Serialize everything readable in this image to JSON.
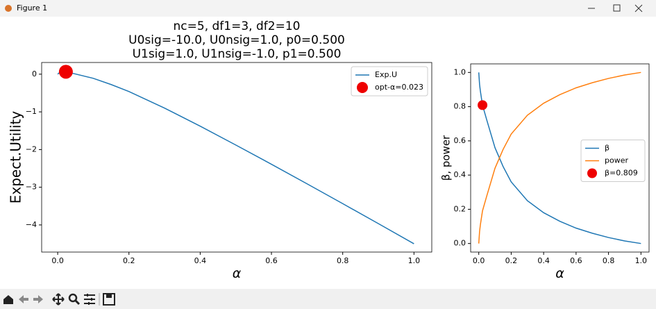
{
  "window": {
    "title": "Figure 1"
  },
  "chart_data": [
    {
      "type": "line",
      "title": [
        "nc=5, df1=3, df2=10",
        "U0sig=-10.0, U0nsig=1.0, p0=0.500",
        "U1sig=1.0, U1nsig=-1.0, p1=0.500"
      ],
      "x_label": "α",
      "y_label": "Expect.Utility",
      "x": [
        0,
        0.005,
        0.01,
        0.023,
        0.05,
        0.1,
        0.15,
        0.2,
        0.3,
        0.4,
        0.5,
        0.6,
        0.7,
        0.8,
        0.9,
        1.0
      ],
      "series": [
        {
          "name": "Exp.U",
          "kind": "line",
          "color": "#1f77b4",
          "values": [
            0,
            0.0425,
            0.055,
            0.0645,
            0.005,
            -0.11,
            -0.275,
            -0.46,
            -0.9,
            -1.38,
            -1.88,
            -2.39,
            -2.91,
            -3.435,
            -3.965,
            -4.5
          ]
        },
        {
          "name": "opt-α=0.023",
          "kind": "scatter",
          "color": "#ee0000",
          "x": [
            0.023
          ],
          "values": [
            0.0645
          ]
        }
      ],
      "xlim": [
        -0.045,
        1.05
      ],
      "ylim": [
        -4.72,
        0.31
      ],
      "xticks": [
        {
          "value": 0,
          "label": "0.0"
        },
        {
          "value": 0.2,
          "label": "0.2"
        },
        {
          "value": 0.4,
          "label": "0.4"
        },
        {
          "value": 0.6,
          "label": "0.6"
        },
        {
          "value": 0.8,
          "label": "0.8"
        },
        {
          "value": 1.0,
          "label": "1.0"
        }
      ],
      "yticks": [
        0,
        {
          "value": -1,
          "label": "−1"
        },
        {
          "value": -2,
          "label": "−2"
        },
        {
          "value": -3,
          "label": "−3"
        },
        {
          "value": -4,
          "label": "−4"
        }
      ],
      "legend": "upper right"
    },
    {
      "type": "line",
      "x_label": "α",
      "y_label": "β, power",
      "x": [
        0,
        0.005,
        0.01,
        0.023,
        0.05,
        0.1,
        0.15,
        0.2,
        0.3,
        0.4,
        0.5,
        0.6,
        0.7,
        0.8,
        0.9,
        1.0
      ],
      "series": [
        {
          "name": "β",
          "kind": "line",
          "color": "#1f77b4",
          "values": [
            1.0,
            0.93,
            0.89,
            0.809,
            0.72,
            0.56,
            0.45,
            0.36,
            0.25,
            0.18,
            0.13,
            0.09,
            0.06,
            0.035,
            0.015,
            0.0
          ]
        },
        {
          "name": "power",
          "kind": "line",
          "color": "#ff7f0e",
          "values": [
            0.0,
            0.07,
            0.11,
            0.191,
            0.28,
            0.44,
            0.55,
            0.64,
            0.75,
            0.82,
            0.87,
            0.91,
            0.94,
            0.965,
            0.985,
            1.0
          ]
        },
        {
          "name": "β=0.809",
          "kind": "scatter",
          "color": "#ee0000",
          "x": [
            0.023
          ],
          "values": [
            0.809
          ]
        }
      ],
      "xlim": [
        -0.05,
        1.05
      ],
      "ylim": [
        -0.05,
        1.05
      ],
      "xticks": [
        {
          "value": 0,
          "label": "0.0"
        },
        {
          "value": 0.2,
          "label": "0.2"
        },
        {
          "value": 0.4,
          "label": "0.4"
        },
        {
          "value": 0.6,
          "label": "0.6"
        },
        {
          "value": 0.8,
          "label": "0.8"
        },
        {
          "value": 1.0,
          "label": "1.0"
        }
      ],
      "yticks": [
        {
          "value": 0,
          "label": "0.0"
        },
        {
          "value": 0.2,
          "label": "0.2"
        },
        {
          "value": 0.4,
          "label": "0.4"
        },
        {
          "value": 0.6,
          "label": "0.6"
        },
        {
          "value": 0.8,
          "label": "0.8"
        },
        {
          "value": 1.0,
          "label": "1.0"
        }
      ],
      "legend": "center right"
    }
  ]
}
